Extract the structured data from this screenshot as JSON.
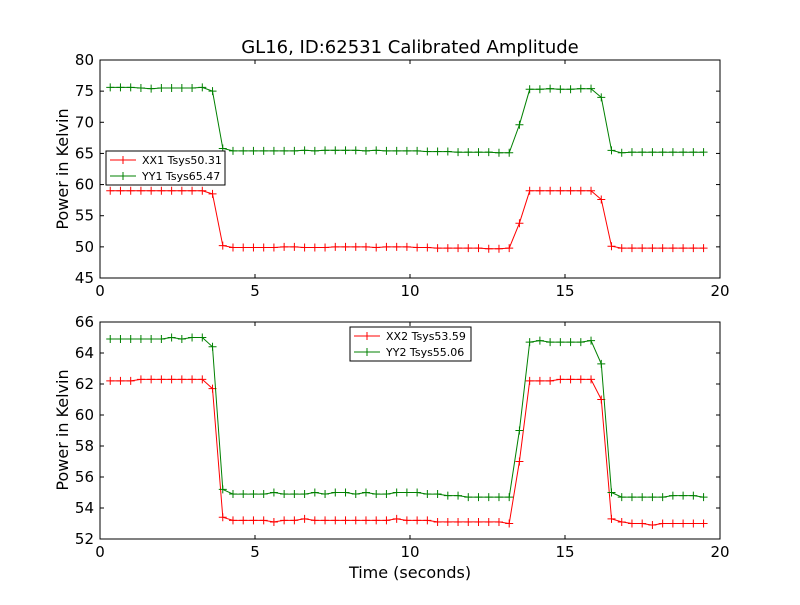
{
  "colors": {
    "red": "#ff0000",
    "green": "#008000"
  },
  "chart_data": {
    "title": "GL16, ID:62531 Calibrated Amplitude",
    "xlabel": "Time (seconds)",
    "plots": [
      {
        "type": "line",
        "ylabel": "Power in Kelvin",
        "xlim": [
          0,
          20
        ],
        "ylim": [
          45,
          80
        ],
        "xticks": [
          "0",
          "5",
          "10",
          "15",
          "20"
        ],
        "yticks": [
          "45",
          "50",
          "55",
          "60",
          "65",
          "70",
          "75",
          "80"
        ],
        "legend_position": "center-left",
        "x": [
          0.33,
          0.66,
          0.99,
          1.32,
          1.65,
          1.98,
          2.31,
          2.64,
          2.97,
          3.3,
          3.63,
          3.96,
          4.29,
          4.62,
          4.95,
          5.28,
          5.61,
          5.94,
          6.27,
          6.6,
          6.93,
          7.26,
          7.59,
          7.92,
          8.25,
          8.58,
          8.91,
          9.24,
          9.57,
          9.9,
          10.23,
          10.56,
          10.89,
          11.22,
          11.55,
          11.88,
          12.21,
          12.54,
          12.87,
          13.2,
          13.53,
          13.86,
          14.19,
          14.52,
          14.85,
          15.18,
          15.51,
          15.84,
          16.17,
          16.5,
          16.83,
          17.16,
          17.49,
          17.82,
          18.15,
          18.48,
          18.81,
          19.14,
          19.47
        ],
        "series": [
          {
            "name": "XX1 Tsys50.31",
            "color": "#ff0000",
            "values": [
              59.0,
              59.0,
              59.0,
              59.0,
              59.0,
              59.0,
              59.0,
              59.0,
              59.0,
              59.0,
              58.5,
              50.2,
              49.9,
              49.9,
              49.9,
              49.9,
              49.9,
              50.0,
              50.0,
              49.9,
              49.9,
              49.9,
              50.0,
              50.0,
              50.0,
              50.0,
              49.9,
              50.0,
              50.0,
              50.0,
              49.9,
              49.9,
              49.8,
              49.8,
              49.8,
              49.8,
              49.8,
              49.7,
              49.7,
              49.8,
              53.8,
              59.0,
              59.0,
              59.0,
              59.0,
              59.0,
              59.0,
              59.0,
              57.6,
              50.1,
              49.8,
              49.8,
              49.8,
              49.8,
              49.8,
              49.8,
              49.8,
              49.8,
              49.8
            ]
          },
          {
            "name": "YY1 Tsys65.47",
            "color": "#008000",
            "values": [
              75.6,
              75.6,
              75.6,
              75.5,
              75.4,
              75.5,
              75.5,
              75.5,
              75.5,
              75.6,
              75.0,
              65.8,
              65.4,
              65.4,
              65.4,
              65.4,
              65.4,
              65.4,
              65.4,
              65.5,
              65.4,
              65.5,
              65.5,
              65.5,
              65.5,
              65.4,
              65.5,
              65.4,
              65.4,
              65.4,
              65.4,
              65.3,
              65.3,
              65.3,
              65.2,
              65.2,
              65.2,
              65.2,
              65.1,
              65.1,
              69.6,
              75.3,
              75.3,
              75.4,
              75.3,
              75.3,
              75.4,
              75.4,
              74.0,
              65.5,
              65.1,
              65.2,
              65.2,
              65.2,
              65.2,
              65.2,
              65.2,
              65.2,
              65.2
            ]
          }
        ]
      },
      {
        "type": "line",
        "ylabel": "Power in Kelvin",
        "xlim": [
          0,
          20
        ],
        "ylim": [
          52,
          66
        ],
        "xticks": [
          "0",
          "5",
          "10",
          "15",
          "20"
        ],
        "yticks": [
          "52",
          "54",
          "56",
          "58",
          "60",
          "62",
          "64",
          "66"
        ],
        "legend_position": "top-center",
        "x": [
          0.33,
          0.66,
          0.99,
          1.32,
          1.65,
          1.98,
          2.31,
          2.64,
          2.97,
          3.3,
          3.63,
          3.96,
          4.29,
          4.62,
          4.95,
          5.28,
          5.61,
          5.94,
          6.27,
          6.6,
          6.93,
          7.26,
          7.59,
          7.92,
          8.25,
          8.58,
          8.91,
          9.24,
          9.57,
          9.9,
          10.23,
          10.56,
          10.89,
          11.22,
          11.55,
          11.88,
          12.21,
          12.54,
          12.87,
          13.2,
          13.53,
          13.86,
          14.19,
          14.52,
          14.85,
          15.18,
          15.51,
          15.84,
          16.17,
          16.5,
          16.83,
          17.16,
          17.49,
          17.82,
          18.15,
          18.48,
          18.81,
          19.14,
          19.47
        ],
        "series": [
          {
            "name": "XX2 Tsys53.59",
            "color": "#ff0000",
            "values": [
              62.2,
              62.2,
              62.2,
              62.3,
              62.3,
              62.3,
              62.3,
              62.3,
              62.3,
              62.3,
              61.7,
              53.4,
              53.2,
              53.2,
              53.2,
              53.2,
              53.1,
              53.2,
              53.2,
              53.3,
              53.2,
              53.2,
              53.2,
              53.2,
              53.2,
              53.2,
              53.2,
              53.2,
              53.3,
              53.2,
              53.2,
              53.2,
              53.1,
              53.1,
              53.1,
              53.1,
              53.1,
              53.1,
              53.1,
              53.0,
              57.0,
              62.2,
              62.2,
              62.2,
              62.3,
              62.3,
              62.3,
              62.3,
              61.0,
              53.3,
              53.1,
              53.0,
              53.0,
              52.9,
              53.0,
              53.0,
              53.0,
              53.0,
              53.0
            ]
          },
          {
            "name": "YY2 Tsys55.06",
            "color": "#008000",
            "values": [
              64.9,
              64.9,
              64.9,
              64.9,
              64.9,
              64.9,
              65.0,
              64.9,
              65.0,
              65.0,
              64.4,
              55.2,
              54.9,
              54.9,
              54.9,
              54.9,
              55.0,
              54.9,
              54.9,
              54.9,
              55.0,
              54.9,
              55.0,
              55.0,
              54.9,
              55.0,
              54.9,
              54.9,
              55.0,
              55.0,
              55.0,
              54.9,
              54.9,
              54.8,
              54.8,
              54.7,
              54.7,
              54.7,
              54.7,
              54.7,
              59.0,
              64.7,
              64.8,
              64.7,
              64.7,
              64.7,
              64.7,
              64.8,
              63.3,
              55.0,
              54.7,
              54.7,
              54.7,
              54.7,
              54.7,
              54.8,
              54.8,
              54.8,
              54.7
            ]
          }
        ]
      }
    ]
  }
}
